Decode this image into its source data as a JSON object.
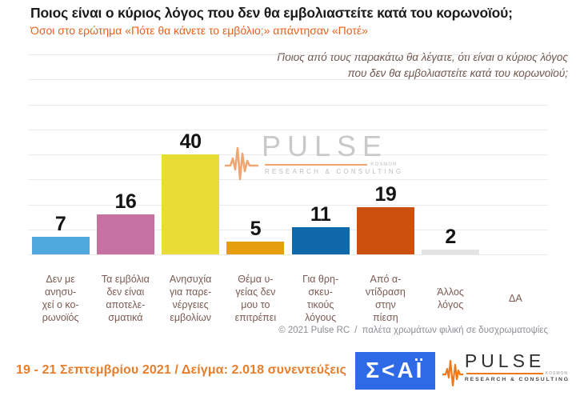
{
  "header": {
    "title": "Ποιος είναι ο κύριος λόγος που δεν θα εμβολιαστείτε κατά του κορωνοϊού;",
    "subtitle": "Όσοι στο ερώτημα «Πότε θα κάνετε το εμβόλιο;» απάντησαν «Ποτέ»"
  },
  "chart_data": {
    "type": "bar",
    "title": "Ποιος είναι ο κύριος λόγος που δεν θα εμβολιαστείτε κατά του κορωνοϊού;",
    "annotation_lines": [
      "Ποιος από τους παρακάτω θα λέγατε, ότι είναι ο κύριος λόγος",
      "που δεν θα εμβολιαστείτε κατά του κορωνοϊού;"
    ],
    "categories": [
      "Δεν με ανησυχεί ο κορωνοϊός",
      "Τα εμβόλια δεν είναι αποτελεσματικά",
      "Ανησυχία για παρενέργειες εμβολίων",
      "Θέμα υγείας δεν μου το επιτρέπει",
      "Για θρησκευτικούς λόγους",
      "Από αντίδραση στην πίεση",
      "Άλλος λόγος",
      "ΔΑ"
    ],
    "category_labels_wrapped": [
      [
        "Δεν με",
        "ανησυ-",
        "χεί ο κο-",
        "ρωνοϊός"
      ],
      [
        "Τα εμβόλια",
        "δεν είναι",
        "αποτελε-",
        "σματικά"
      ],
      [
        "Ανησυχία",
        "για παρε-",
        "νέργειες",
        "εμβολίων"
      ],
      [
        "Θέμα υ-",
        "γείας δεν",
        "μου το",
        "επιτρέπει"
      ],
      [
        "Για θρη-",
        "σκευ-",
        "τικούς",
        "λόγους"
      ],
      [
        "Από α-",
        "ντίδραση",
        "στην",
        "πίεση"
      ],
      [
        "Άλλος",
        "λόγος"
      ],
      [
        "ΔΑ"
      ]
    ],
    "values": [
      7,
      16,
      40,
      5,
      11,
      19,
      2,
      null
    ],
    "bar_colors": [
      "#4fa9de",
      "#c571a1",
      "#e8dd34",
      "#e69d0e",
      "#0f68a9",
      "#cc500e",
      "#e3e3e3",
      null
    ],
    "ylim": [
      0,
      80
    ],
    "grid_step": 10,
    "grid": true,
    "legend": "none",
    "xlabel": "",
    "ylabel": ""
  },
  "watermark": {
    "brand": "PULSE",
    "submark": "KOSMON",
    "tagline": "RESEARCH & CONSULTING"
  },
  "footer_note": {
    "copyright": "© 2021 Pulse RC",
    "separator": "/",
    "palette_note": "παλέτα χρωμάτων φιλική σε δυσχρωματοψίες"
  },
  "bottom_bar": {
    "date_sample": "19 - 21 Σεπτεμβρίου 2021  /  Δείγμα:  2.018 συνεντεύξεις",
    "skai_text": "Σ<ΑΪ",
    "pulse_brand": "PULSE",
    "pulse_submark": "KOSMON",
    "pulse_tagline": "RESEARCH & CONSULTING"
  },
  "colors": {
    "accent_orange": "#e8611c",
    "date_orange": "#e87e2b",
    "annotation_brown": "#6f564d",
    "category_brown": "#7a5a50",
    "gridline_gray": "#eaeaea",
    "credit_gray": "#8d8d97",
    "skai_blue": "#2e6ae6",
    "watermark_gray": "#c7c7c7",
    "pulse_wave_orange": "#f07818"
  }
}
